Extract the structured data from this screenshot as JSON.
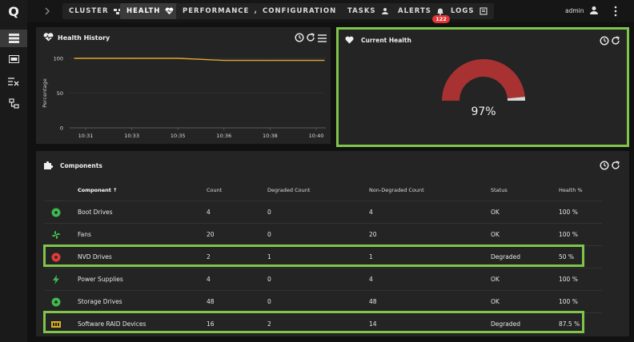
{
  "app": {
    "logo": "Q"
  },
  "nav": {
    "tabs": [
      {
        "label": "CLUSTER",
        "icon": "cluster-icon"
      },
      {
        "label": "HEALTH",
        "icon": "heartbeat-icon",
        "active": true
      },
      {
        "label": "PERFORMANCE",
        "icon": "gauge-icon"
      },
      {
        "label": "CONFIGURATION",
        "icon": "settings-icon"
      },
      {
        "label": "TASKS",
        "icon": "user-task-icon"
      },
      {
        "label": "ALERTS",
        "icon": "bell-icon"
      },
      {
        "label": "LOGS",
        "icon": "logs-icon"
      }
    ],
    "alerts_badge": "122",
    "user": "admin"
  },
  "sidebar": {
    "items": [
      {
        "icon": "list-view-icon",
        "active": true
      },
      {
        "icon": "drive-icon"
      },
      {
        "icon": "list-clear-icon"
      },
      {
        "icon": "network-icon"
      }
    ]
  },
  "health_history": {
    "title": "Health History",
    "chart_data": {
      "type": "line",
      "ylabel": "Percentage",
      "xlabel": "",
      "ylim": [
        0,
        100
      ],
      "yticks": [
        "0",
        "50",
        "100"
      ],
      "categories": [
        "10:31",
        "10:33",
        "10:35",
        "10:36",
        "10:38",
        "10:40"
      ],
      "series": [
        {
          "values": [
            100,
            100,
            100,
            97,
            97,
            97
          ],
          "color": "#e0a82e"
        }
      ]
    }
  },
  "current_health": {
    "title": "Current Health",
    "value": 97,
    "value_label": "97%",
    "gauge_color": "#a83232",
    "remainder_color": "#d9d9d9"
  },
  "components": {
    "title": "Components",
    "columns": [
      "Component",
      "Count",
      "Degraded Count",
      "Non-Degraded Count",
      "Status",
      "Health %"
    ],
    "sort_indicator": "↑",
    "rows": [
      {
        "icon": "drive-ok-icon",
        "icon_color": "#3fb950",
        "name": "Boot Drives",
        "count": "4",
        "degraded": "0",
        "non_degraded": "4",
        "status": "OK",
        "health": "100 %"
      },
      {
        "icon": "fan-icon",
        "icon_color": "#3fb950",
        "name": "Fans",
        "count": "20",
        "degraded": "0",
        "non_degraded": "20",
        "status": "OK",
        "health": "100 %"
      },
      {
        "icon": "drive-error-icon",
        "icon_color": "#e23b3b",
        "name": "NVD Drives",
        "count": "2",
        "degraded": "1",
        "non_degraded": "1",
        "status": "Degraded",
        "health": "50 %"
      },
      {
        "icon": "power-icon",
        "icon_color": "#3fb950",
        "name": "Power Supplies",
        "count": "4",
        "degraded": "0",
        "non_degraded": "4",
        "status": "OK",
        "health": "100 %"
      },
      {
        "icon": "drive-ok-icon",
        "icon_color": "#3fb950",
        "name": "Storage Drives",
        "count": "48",
        "degraded": "0",
        "non_degraded": "48",
        "status": "OK",
        "health": "100 %"
      },
      {
        "icon": "raid-icon",
        "icon_color": "#e0b020",
        "name": "Software RAID Devices",
        "count": "16",
        "degraded": "2",
        "non_degraded": "14",
        "status": "Degraded",
        "health": "87.5 %"
      }
    ]
  },
  "colors": {
    "highlight": "#7ec54a",
    "ok": "#3fb950",
    "error": "#e23b3b",
    "warning": "#e0b020"
  }
}
